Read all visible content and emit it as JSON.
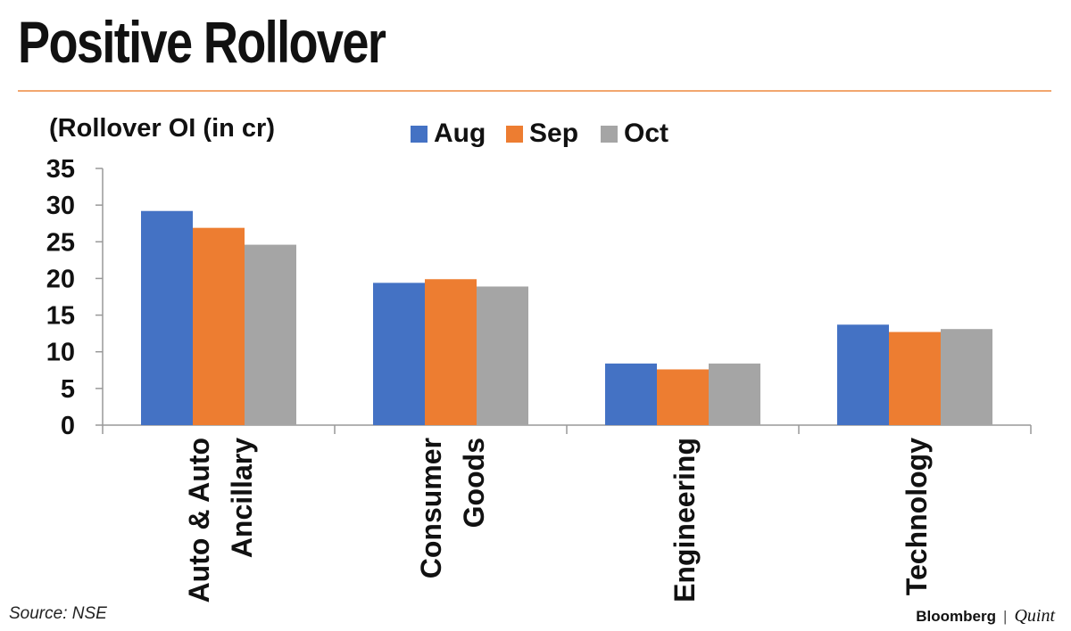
{
  "header": {
    "title": "Positive Rollover"
  },
  "footer": {
    "source": "Source: NSE",
    "brand_primary": "Bloomberg",
    "brand_separator": "|",
    "brand_secondary": "Quint"
  },
  "colors": {
    "Aug": "#4472c4",
    "Sep": "#ed7d31",
    "Oct": "#a5a5a5",
    "accent_rule": "#f2a66e"
  },
  "chart_data": {
    "type": "bar",
    "title": "Positive Rollover",
    "ylabel": "(Rollover OI (in cr)",
    "xlabel": "",
    "categories": [
      [
        "Auto & Auto",
        "Ancillary"
      ],
      [
        "Consumer",
        "Goods"
      ],
      [
        "Engineering"
      ],
      [
        "Technology"
      ]
    ],
    "series": [
      {
        "name": "Aug",
        "values": [
          29.2,
          19.4,
          8.4,
          13.7
        ]
      },
      {
        "name": "Sep",
        "values": [
          26.9,
          19.9,
          7.6,
          12.7
        ]
      },
      {
        "name": "Oct",
        "values": [
          24.6,
          18.9,
          8.4,
          13.1
        ]
      }
    ],
    "ylim": [
      0,
      35
    ],
    "yticks": [
      0,
      5,
      10,
      15,
      20,
      25,
      30,
      35
    ],
    "grid": false,
    "legend": "top-center"
  }
}
